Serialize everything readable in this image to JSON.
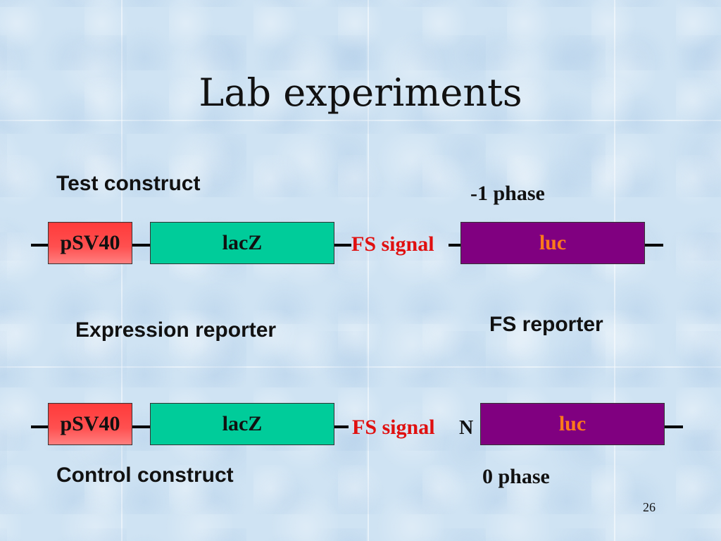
{
  "slide": {
    "title": "Lab experiments",
    "page_number": "26"
  },
  "test_construct": {
    "label": "Test construct",
    "phase_label": "-1 phase",
    "promoter": "pSV40",
    "gene": "lacZ",
    "signal": "FS signal",
    "reporter": "luc"
  },
  "annotations": {
    "expression_reporter": "Expression reporter",
    "fs_reporter": "FS reporter"
  },
  "control_construct": {
    "label": "Control construct",
    "phase_label": "0 phase",
    "promoter": "pSV40",
    "gene": "lacZ",
    "signal": "FS signal",
    "extra_base": "N",
    "reporter": "luc"
  },
  "colors": {
    "promoter": "#ff4d4d",
    "gene": "#00cc9a",
    "reporter": "#800080",
    "reporter_text": "#ff7a1a",
    "signal_text": "#e01010"
  }
}
